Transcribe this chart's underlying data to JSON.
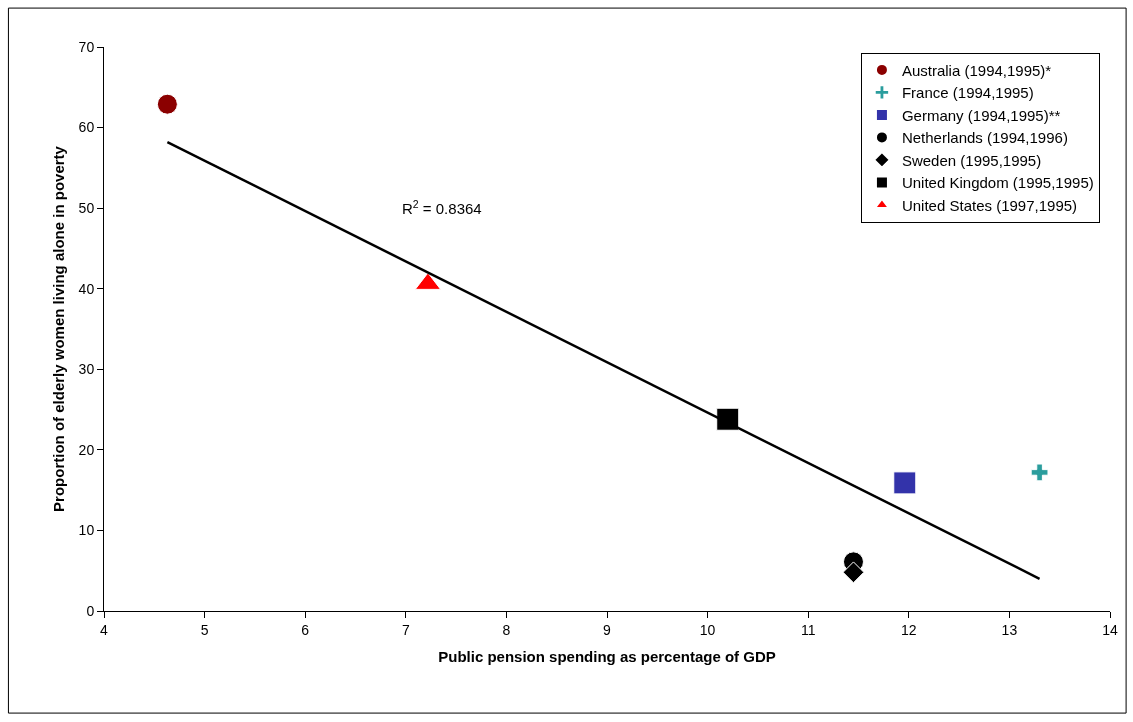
{
  "chart_data": {
    "type": "scatter",
    "xlabel": "Public pension spending as percentage of GDP",
    "ylabel": "Proportion of elderly women living alone in poverty",
    "xlim": [
      4,
      14
    ],
    "xticks": [
      4,
      5,
      6,
      7,
      8,
      9,
      10,
      11,
      12,
      13,
      14
    ],
    "ylim": [
      0,
      70
    ],
    "yticks": [
      0,
      10,
      20,
      30,
      40,
      50,
      60,
      70
    ],
    "legend": "top right",
    "annotations": [
      "R$^{2}$ = 0.8364"
    ],
    "series": [
      {
        "name": "Australia (1994,1995)*",
        "color": "#8b0000",
        "marker": "circle",
        "x": [
          4.63
        ],
        "values": [
          62.9
        ]
      },
      {
        "name": "France (1994,1995)",
        "color": "#2a9d9d",
        "marker": "cross",
        "x": [
          13.3
        ],
        "values": [
          17.2
        ]
      },
      {
        "name": "Germany (1994,1995)**",
        "color": "#3333aa",
        "marker": "square",
        "x": [
          11.96
        ],
        "values": [
          15.9
        ]
      },
      {
        "name": "Netherlands (1994,1996)",
        "color": "#000000",
        "marker": "circle",
        "x": [
          11.45
        ],
        "values": [
          6.1
        ]
      },
      {
        "name": "Sweden (1995,1995)",
        "color": "#000000",
        "marker": "diamond",
        "x": [
          11.45
        ],
        "values": [
          4.8
        ]
      },
      {
        "name": "United Kingdom (1995,1995)",
        "color": "#000000",
        "marker": "square",
        "x": [
          10.2
        ],
        "values": [
          23.8
        ]
      },
      {
        "name": "United States (1997,1995)",
        "color": "#ff0000",
        "marker": "triangle",
        "x": [
          7.22
        ],
        "values": [
          40.6
        ]
      },
      {
        "type": "line",
        "color": "#000000",
        "marker": "none",
        "x": [
          4.63,
          13.3
        ],
        "values": [
          58.2,
          4.0
        ]
      }
    ]
  }
}
